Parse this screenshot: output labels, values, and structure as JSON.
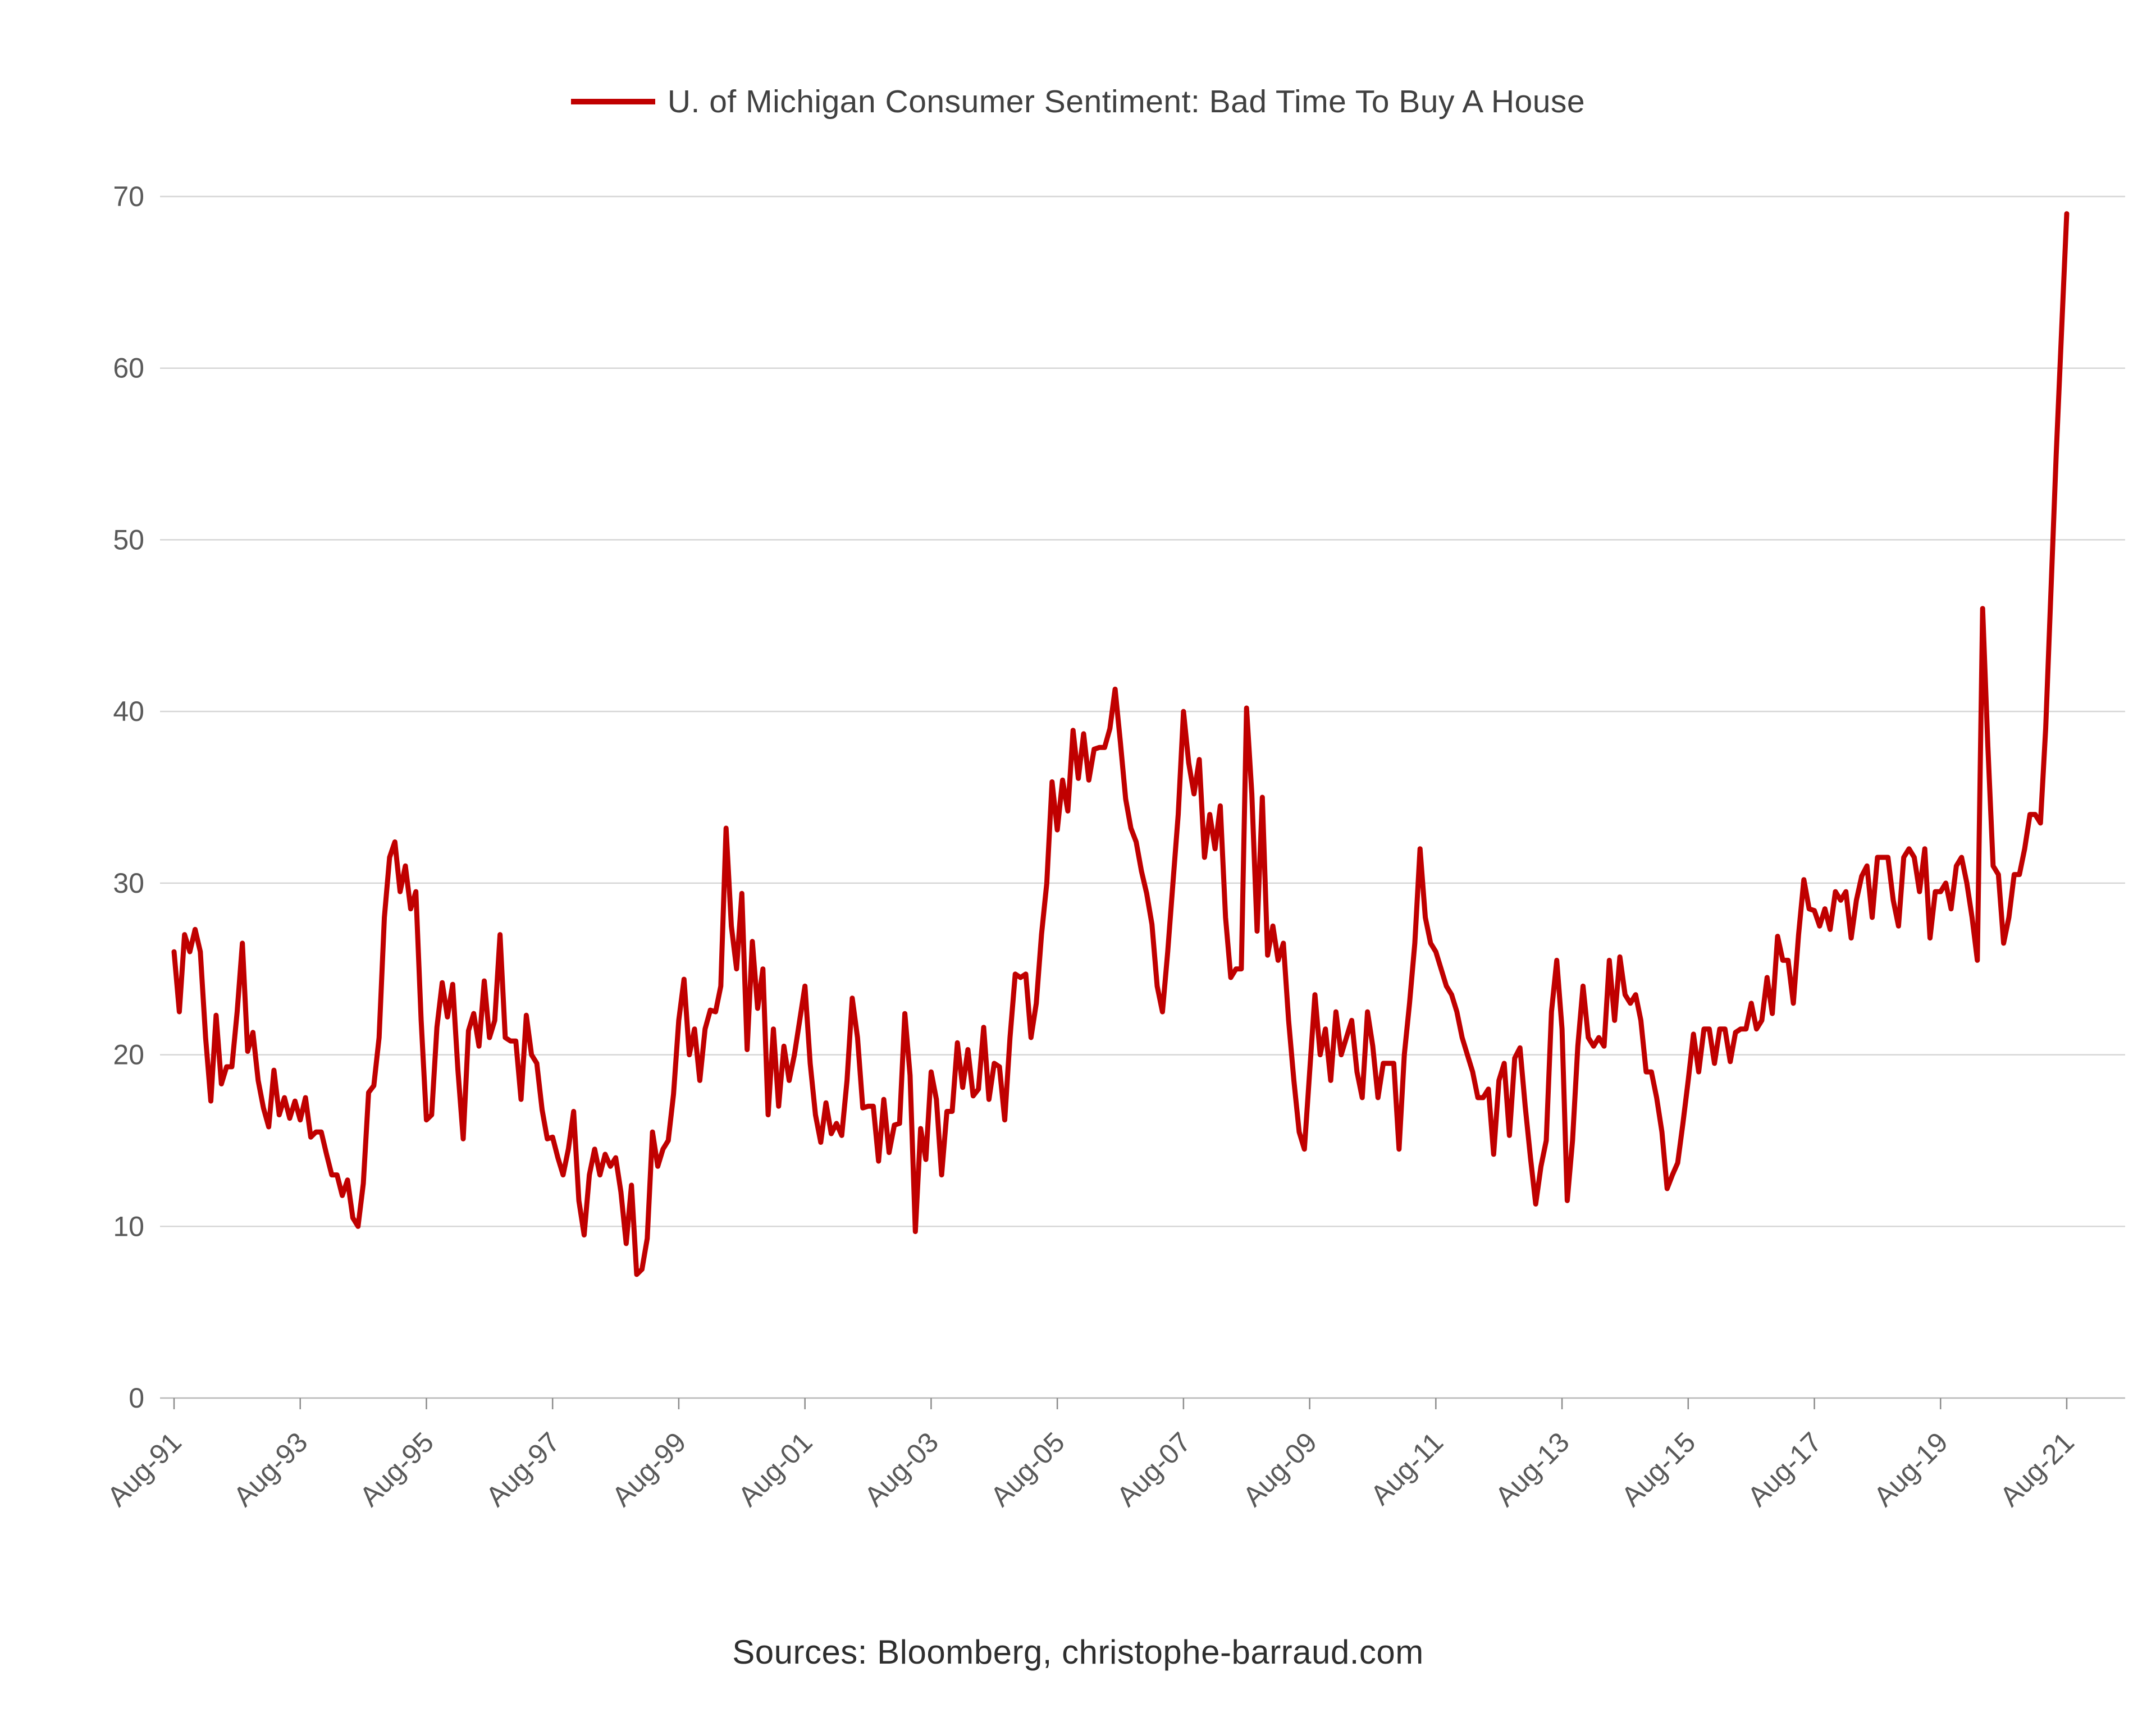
{
  "chart_data": {
    "type": "line",
    "title": "U. of Michigan Consumer Sentiment: Bad Time To Buy A House",
    "legend_position": "top-center",
    "grid": "horizontal",
    "line_color": "#c00000",
    "ylim": [
      0,
      70
    ],
    "yticks": [
      0,
      10,
      20,
      30,
      40,
      50,
      60,
      70
    ],
    "x_start_month": "Aug-1991",
    "x_end_month": "Aug-2021",
    "frequency": "monthly",
    "x_tick_interval_months": 24,
    "x_tick_labels": [
      "Aug-91",
      "Aug-93",
      "Aug-95",
      "Aug-97",
      "Aug-99",
      "Aug-01",
      "Aug-03",
      "Aug-05",
      "Aug-07",
      "Aug-09",
      "Aug-11",
      "Aug-13",
      "Aug-15",
      "Aug-17",
      "Aug-19",
      "Aug-21"
    ],
    "series": [
      {
        "name": "U. of Michigan Consumer Sentiment: Bad Time To Buy A House",
        "values": [
          26,
          22.5,
          27,
          26,
          27.3,
          26,
          21,
          17.3,
          22.3,
          18.3,
          19.3,
          19.3,
          22.5,
          26.5,
          20.2,
          21.3,
          18.5,
          16.9,
          15.8,
          19.1,
          16.5,
          17.5,
          16.3,
          17.3,
          16.2,
          17.5,
          15.2,
          15.5,
          15.5,
          14.2,
          13,
          13,
          11.8,
          12.7,
          10.5,
          10,
          12.5,
          17.8,
          18.2,
          21,
          28,
          31.5,
          32.4,
          29.5,
          31,
          28.5,
          29.5,
          22,
          16.2,
          16.5,
          21.6,
          24.2,
          22.2,
          24.1,
          19.1,
          15.1,
          21.4,
          22.4,
          20.5,
          24.3,
          21,
          22,
          27,
          21,
          20.8,
          20.8,
          17.4,
          22.3,
          20,
          19.5,
          16.8,
          15.1,
          15.2,
          14,
          13,
          14.5,
          16.7,
          11.5,
          9.5,
          13,
          14.5,
          13,
          14.2,
          13.5,
          14,
          12,
          9,
          12.4,
          7.2,
          7.5,
          9.3,
          15.5,
          13.5,
          14.5,
          15,
          17.7,
          22,
          24.4,
          20,
          21.5,
          18.5,
          21.5,
          22.6,
          22.5,
          24,
          33.2,
          27.5,
          25,
          29.4,
          20.3,
          26.6,
          22.7,
          25,
          16.5,
          21.5,
          17,
          20.5,
          18.5,
          20,
          22,
          24,
          19.5,
          16.5,
          14.9,
          17.2,
          15.4,
          16,
          15.3,
          18.5,
          23.3,
          21,
          16.9,
          17,
          17,
          13.8,
          17.4,
          14.3,
          15.9,
          16,
          22.4,
          18.8,
          9.7,
          15.7,
          13.9,
          19,
          17.4,
          13,
          16.7,
          16.7,
          20.7,
          18.1,
          20.3,
          17.6,
          18,
          21.6,
          17.4,
          19.5,
          19.3,
          16.2,
          21,
          24.7,
          24.5,
          24.7,
          21,
          23,
          27,
          30,
          35.9,
          33.1,
          36,
          34.2,
          38.9,
          36.1,
          38.7,
          36,
          37.8,
          37.9,
          37.9,
          39,
          41.3,
          38.2,
          34.9,
          33.2,
          32.4,
          30.7,
          29.4,
          27.6,
          24,
          22.5,
          26,
          30,
          34,
          40,
          37,
          35.2,
          37.2,
          31.5,
          34,
          32,
          34.5,
          28,
          24.5,
          25,
          25,
          40.2,
          35.2,
          27.2,
          35,
          25.8,
          27.5,
          25.5,
          26.5,
          22,
          18.5,
          15.5,
          14.5,
          19,
          23.5,
          20,
          21.5,
          18.5,
          22.5,
          20,
          21,
          22,
          19,
          17.5,
          22.5,
          20.5,
          17.5,
          19.5,
          19.5,
          19.5,
          14.5,
          20,
          23,
          26.5,
          32,
          28,
          26.5,
          26,
          25,
          24,
          23.5,
          22.5,
          21,
          20,
          19,
          17.5,
          17.5,
          18,
          14.2,
          18.5,
          19.5,
          15.3,
          19.8,
          20.4,
          17,
          14,
          11.3,
          13.5,
          15,
          22.5,
          25.5,
          21.5,
          11.5,
          15,
          20.5,
          24,
          21,
          20.5,
          21,
          20.5,
          25.5,
          22,
          25.7,
          23.5,
          23,
          23.5,
          22,
          19,
          19,
          17.5,
          15.5,
          12.2,
          13,
          13.7,
          16,
          18.5,
          21.2,
          19,
          21.5,
          21.5,
          19.5,
          21.5,
          21.5,
          19.6,
          21.3,
          21.5,
          21.5,
          23,
          21.5,
          22,
          24.5,
          22.4,
          26.9,
          25.5,
          25.5,
          23,
          27,
          30.2,
          28.5,
          28.4,
          27.5,
          28.5,
          27.3,
          29.5,
          29,
          29.5,
          26.8,
          29,
          30.4,
          31,
          28,
          31.5,
          31.5,
          31.5,
          29,
          27.5,
          31.5,
          32,
          31.5,
          29.5,
          32,
          26.8,
          29.5,
          29.5,
          30,
          28.5,
          31,
          31.5,
          30,
          28,
          25.5,
          46,
          38,
          31,
          30.5,
          26.5,
          28,
          30.5,
          30.5,
          32,
          34,
          34,
          33.5,
          39,
          47,
          55,
          62,
          69
        ]
      }
    ]
  },
  "footer": {
    "text": "Sources: Bloomberg, christophe-barraud.com"
  }
}
